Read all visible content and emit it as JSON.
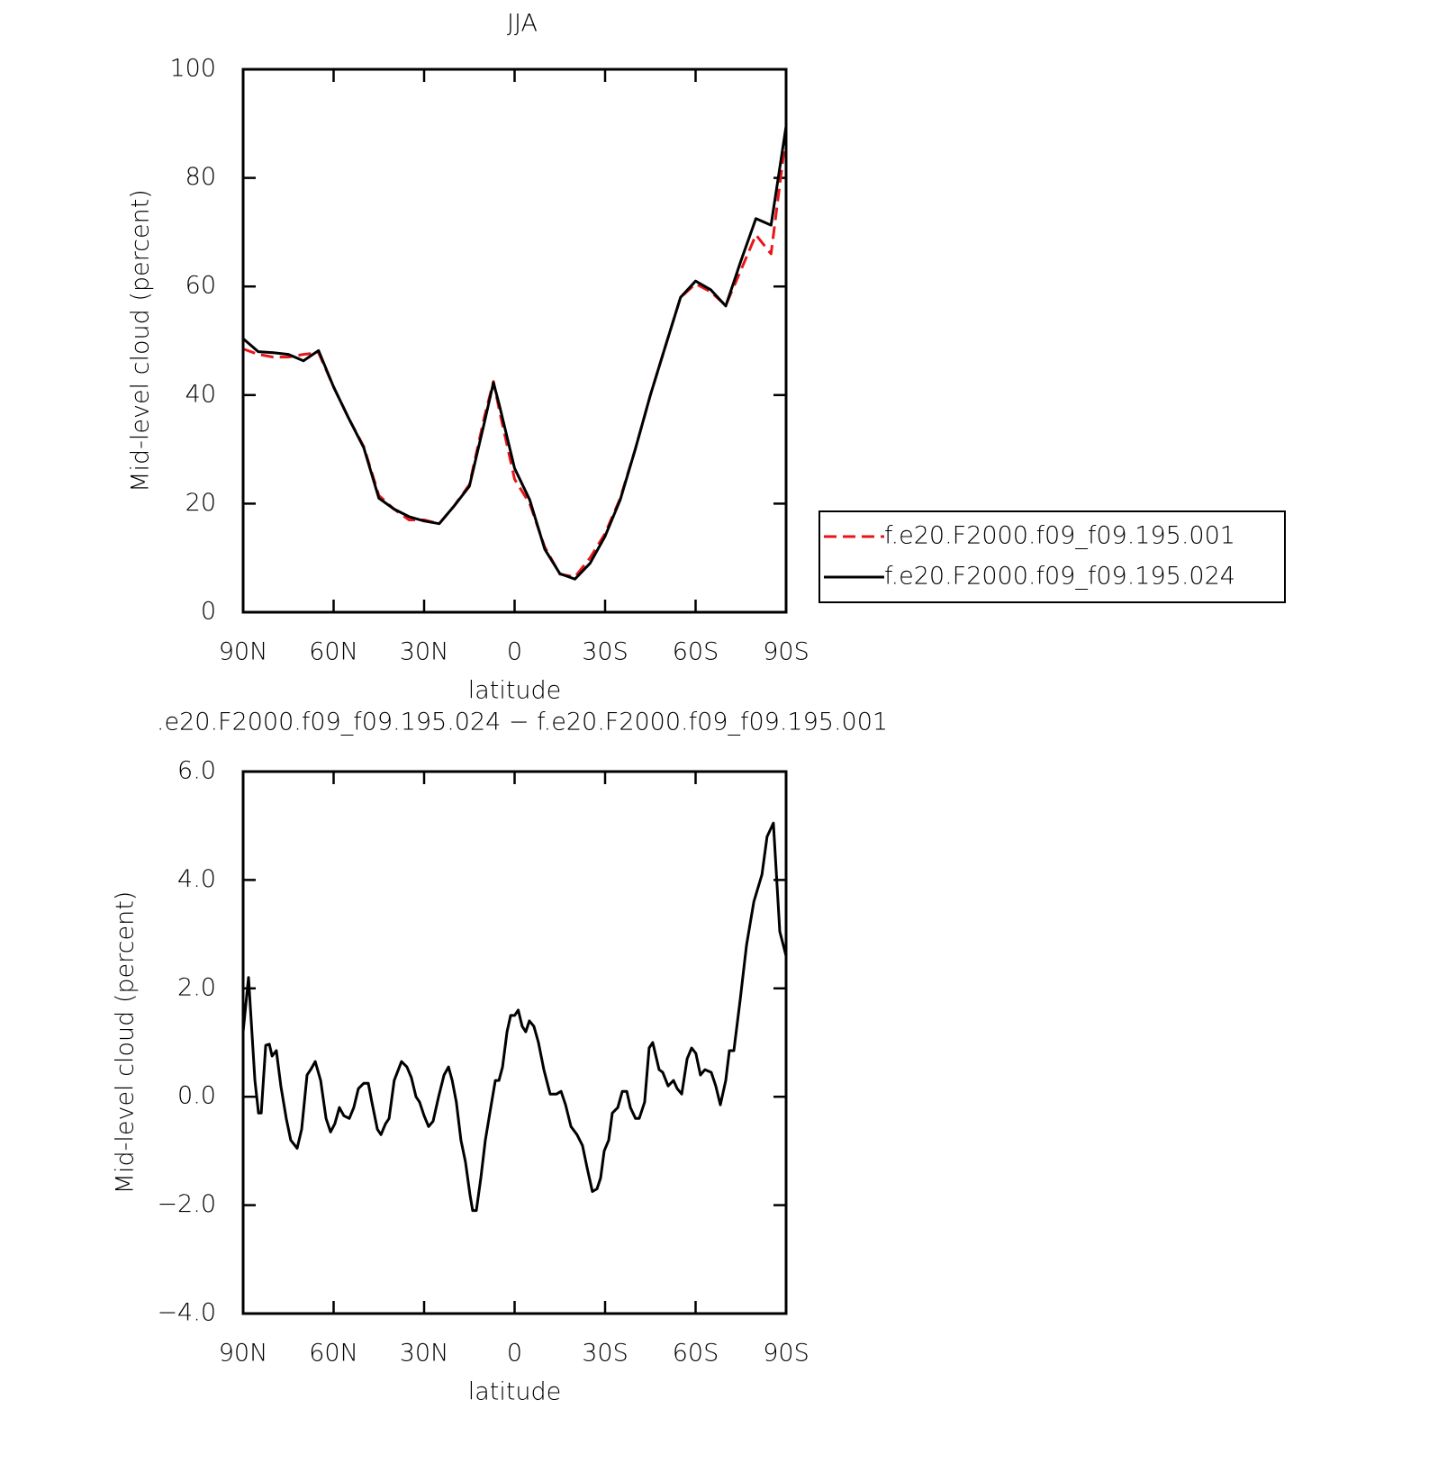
{
  "chart_data": [
    {
      "type": "line",
      "title": "JJA",
      "xlabel": "latitude",
      "ylabel": "Mid-level cloud (percent)",
      "xlim": [
        90,
        -90
      ],
      "xticks": [
        {
          "value": 90,
          "label": "90N"
        },
        {
          "value": 60,
          "label": "60N"
        },
        {
          "value": 30,
          "label": "30N"
        },
        0,
        {
          "value": -30,
          "label": "30S"
        },
        {
          "value": -60,
          "label": "60S"
        },
        {
          "value": -90,
          "label": "90S"
        }
      ],
      "ylim": [
        0,
        100
      ],
      "yticks": [
        0,
        20,
        40,
        60,
        80,
        100
      ],
      "x": [
        90,
        85,
        80,
        75,
        70,
        65,
        60,
        55,
        50,
        45,
        40,
        35,
        30,
        25,
        20,
        15,
        10,
        7,
        5,
        0,
        -5,
        -10,
        -15,
        -20,
        -25,
        -30,
        -35,
        -40,
        -45,
        -50,
        -55,
        -60,
        -65,
        -70,
        -75,
        -80,
        -85,
        -90
      ],
      "series": [
        {
          "name": "f.e20.F2000.f09_f09.195.001",
          "color": "#e8161b",
          "style": "dashed",
          "values": [
            48.5,
            47.5,
            47,
            47,
            47.5,
            47.8,
            41.5,
            35.7,
            30.5,
            21.5,
            19,
            17,
            17,
            16.3,
            19.6,
            23.5,
            36,
            42.5,
            37,
            24.5,
            20,
            12,
            7,
            6.5,
            10,
            14.5,
            21,
            30,
            40,
            49,
            58,
            60.5,
            59,
            56.5,
            63,
            69.5,
            66,
            88
          ]
        },
        {
          "name": "f.e20.F2000.f09_f09.195.024",
          "color": "#000000",
          "style": "solid",
          "values": [
            50.4,
            48,
            47.8,
            47.5,
            46.3,
            48.2,
            41.5,
            35.7,
            30.3,
            21,
            19,
            17.6,
            16.8,
            16.3,
            19.6,
            23.2,
            35,
            42.3,
            38,
            26.5,
            20.7,
            11.6,
            7.1,
            6.1,
            9,
            14,
            20.7,
            30,
            40,
            49,
            58,
            61,
            59.4,
            56.4,
            64.7,
            72.5,
            71.3,
            89.5
          ]
        }
      ]
    },
    {
      "type": "line",
      "title": ".e20.F2000.f09_f09.195.024 − f.e20.F2000.f09_f09.195.001",
      "xlabel": "latitude",
      "ylabel": "Mid-level cloud (percent)",
      "xlim": [
        90,
        -90
      ],
      "xticks": [
        {
          "value": 90,
          "label": "90N"
        },
        {
          "value": 60,
          "label": "60N"
        },
        {
          "value": 30,
          "label": "30N"
        },
        0,
        {
          "value": -30,
          "label": "30S"
        },
        {
          "value": -60,
          "label": "60S"
        },
        {
          "value": -90,
          "label": "90S"
        }
      ],
      "ylim": [
        -4,
        6
      ],
      "yticks": [
        {
          "value": -4,
          "label": "−4.0"
        },
        {
          "value": -2,
          "label": "−2.0"
        },
        {
          "value": 0,
          "label": "0.0"
        },
        {
          "value": 2,
          "label": "2.0"
        },
        {
          "value": 4,
          "label": "4.0"
        },
        {
          "value": 6,
          "label": "6.0"
        }
      ],
      "x": [
        90,
        88.2,
        86.1,
        84.9,
        84.0,
        82.5,
        81.3,
        80.4,
        79.0,
        77.5,
        75.7,
        74.2,
        72.1,
        70.6,
        68.8,
        67.6,
        66.1,
        64.3,
        62.5,
        61.0,
        59.6,
        58.1,
        56.6,
        54.8,
        53.3,
        51.8,
        50.0,
        48.5,
        47.3,
        45.5,
        44.3,
        42.8,
        41.6,
        39.9,
        37.5,
        35.7,
        34.2,
        32.7,
        31.5,
        30.0,
        28.5,
        27.0,
        25.2,
        23.4,
        21.9,
        20.7,
        19.3,
        17.8,
        16.3,
        14.8,
        13.9,
        12.7,
        11.2,
        9.7,
        7.9,
        6.4,
        5.2,
        4.0,
        2.5,
        1.3,
        0,
        -1.2,
        -2.5,
        -3.7,
        -4.9,
        -6.4,
        -7.9,
        -9.7,
        -11.8,
        -13.9,
        -15.4,
        -16.9,
        -18.7,
        -20.7,
        -22.5,
        -24.0,
        -25.8,
        -27.3,
        -28.5,
        -29.7,
        -31.2,
        -32.4,
        -34.2,
        -35.7,
        -37.2,
        -38.4,
        -40.1,
        -41.3,
        -43.1,
        -44.6,
        -45.8,
        -47.9,
        -49.1,
        -50.9,
        -52.7,
        -53.9,
        -55.4,
        -57.2,
        -58.7,
        -60.1,
        -61.6,
        -63.1,
        -65.2,
        -66.7,
        -68.2,
        -70.0,
        -71.2,
        -72.7,
        -74.8,
        -76.9,
        -79.3,
        -82.0,
        -83.7,
        -85.8,
        -87.9,
        -90
      ],
      "series": [
        {
          "color": "#000000",
          "style": "solid",
          "values": [
            1.2,
            2.2,
            0.3,
            -0.3,
            -0.3,
            0.95,
            0.97,
            0.75,
            0.85,
            0.2,
            -0.4,
            -0.8,
            -0.95,
            -0.6,
            0.4,
            0.5,
            0.65,
            0.3,
            -0.4,
            -0.65,
            -0.5,
            -0.2,
            -0.35,
            -0.4,
            -0.2,
            0.15,
            0.25,
            0.25,
            -0.1,
            -0.6,
            -0.7,
            -0.5,
            -0.4,
            0.3,
            0.65,
            0.55,
            0.35,
            0,
            -0.1,
            -0.35,
            -0.55,
            -0.45,
            0,
            0.4,
            0.55,
            0.3,
            -0.1,
            -0.8,
            -1.2,
            -1.8,
            -2.1,
            -2.1,
            -1.5,
            -0.8,
            -0.2,
            0.3,
            0.3,
            0.55,
            1.2,
            1.5,
            1.5,
            1.6,
            1.3,
            1.2,
            1.4,
            1.3,
            1.0,
            0.5,
            0.05,
            0.05,
            0.1,
            -0.15,
            -0.55,
            -0.7,
            -0.9,
            -1.3,
            -1.75,
            -1.7,
            -1.5,
            -1.0,
            -0.8,
            -0.3,
            -0.2,
            0.1,
            0.1,
            -0.2,
            -0.4,
            -0.4,
            -0.1,
            0.9,
            1.0,
            0.5,
            0.45,
            0.2,
            0.3,
            0.15,
            0.05,
            0.7,
            0.9,
            0.8,
            0.4,
            0.5,
            0.45,
            0.2,
            -0.15,
            0.3,
            0.85,
            0.85,
            1.8,
            2.8,
            3.6,
            4.1,
            4.8,
            5.05,
            3.05,
            2.6
          ]
        }
      ]
    }
  ]
}
